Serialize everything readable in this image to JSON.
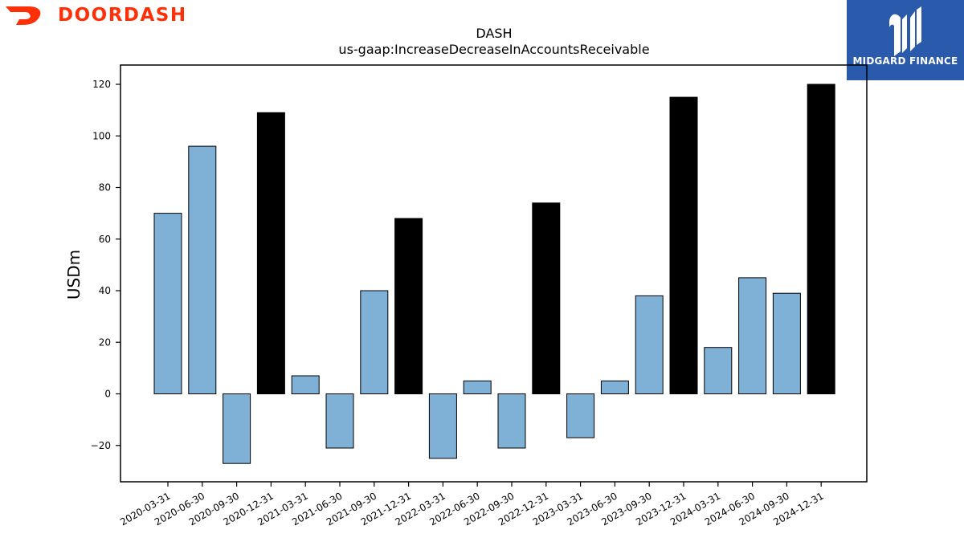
{
  "brand_left": {
    "name": "DOORDASH",
    "icon": "doordash-dash-icon",
    "color": "#ff3008"
  },
  "brand_right": {
    "name": "MIDGARD FINANCE",
    "icon": "midgard-mi-monogram-icon",
    "background": "#2a5aab"
  },
  "chart_data": {
    "type": "bar",
    "title": "DASH",
    "subtitle": "us-gaap:IncreaseDecreaseInAccountsReceivable",
    "xlabel": "",
    "ylabel": "USDm",
    "ylim": [
      -33,
      128
    ],
    "yticks": [
      -20,
      0,
      20,
      40,
      60,
      80,
      100,
      120
    ],
    "ytick_labels": [
      "−20",
      "0",
      "20",
      "40",
      "60",
      "80",
      "100",
      "120"
    ],
    "grid": false,
    "categories": [
      "2020-03-31",
      "2020-06-30",
      "2020-09-30",
      "2020-12-31",
      "2021-03-31",
      "2021-06-30",
      "2021-09-30",
      "2021-12-31",
      "2022-03-31",
      "2022-06-30",
      "2022-09-30",
      "2022-12-31",
      "2023-03-31",
      "2023-06-30",
      "2023-09-30",
      "2023-12-31",
      "2024-03-31",
      "2024-06-30",
      "2024-09-30",
      "2024-12-31"
    ],
    "values": [
      70,
      96,
      -27,
      109,
      7,
      -21,
      40,
      68,
      -25,
      5,
      -21,
      74,
      -17,
      5,
      38,
      115,
      18,
      45,
      39,
      120
    ],
    "colors": {
      "quarter": "#7fb0d5",
      "year_end": "#000000"
    }
  }
}
